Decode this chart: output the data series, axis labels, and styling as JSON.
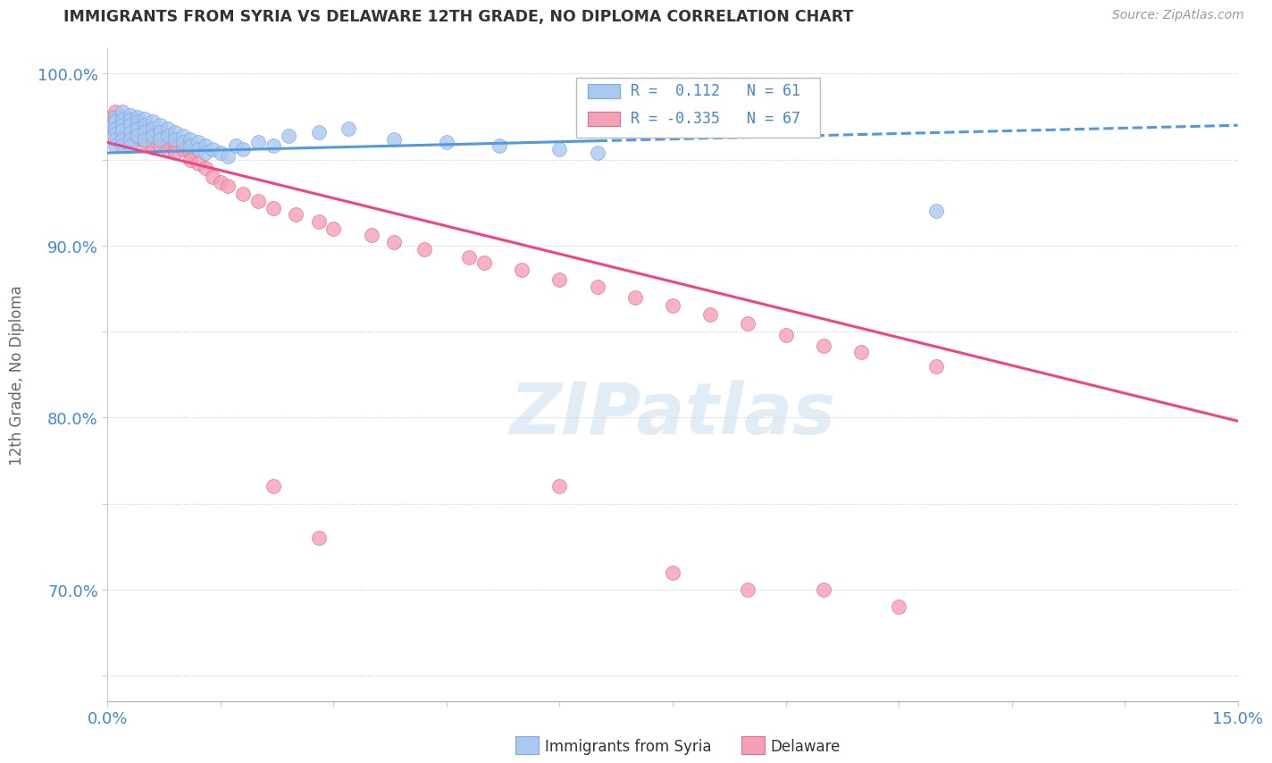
{
  "title": "IMMIGRANTS FROM SYRIA VS DELAWARE 12TH GRADE, NO DIPLOMA CORRELATION CHART",
  "source": "Source: ZipAtlas.com",
  "ylabel": "12th Grade, No Diploma",
  "xlim": [
    0.0,
    0.15
  ],
  "ylim": [
    0.635,
    1.015
  ],
  "xtick_positions": [
    0.0,
    0.015,
    0.03,
    0.045,
    0.06,
    0.075,
    0.09,
    0.105,
    0.12,
    0.135,
    0.15
  ],
  "xtick_labels": [
    "0.0%",
    "",
    "",
    "",
    "",
    "",
    "",
    "",
    "",
    "",
    "15.0%"
  ],
  "ytick_positions": [
    0.65,
    0.7,
    0.75,
    0.8,
    0.85,
    0.9,
    0.95,
    1.0
  ],
  "ytick_labels": [
    "",
    "70.0%",
    "",
    "80.0%",
    "",
    "90.0%",
    "",
    "100.0%"
  ],
  "color_syria": "#aac8f0",
  "color_syria_edge": "#7aaae0",
  "color_delaware": "#f5a0b5",
  "color_delaware_edge": "#e07090",
  "color_syria_line": "#5599dd",
  "color_delaware_line": "#ee4488",
  "color_axis_blue": "#4488cc",
  "color_title": "#333333",
  "color_source": "#999999",
  "watermark_text": "ZIPatlas",
  "watermark_color": "#ddeeff",
  "legend_r1": "R =  0.112",
  "legend_n1": "N = 61",
  "legend_r2": "R = -0.335",
  "legend_n2": "N = 67",
  "syria_line_x0": 0.0,
  "syria_line_x1": 0.15,
  "syria_line_y0": 0.954,
  "syria_line_y1": 0.97,
  "syria_line_solid_end": 0.065,
  "delaware_line_x0": 0.0,
  "delaware_line_x1": 0.15,
  "delaware_line_y0": 0.96,
  "delaware_line_y1": 0.798,
  "syria_x": [
    0.0005,
    0.001,
    0.001,
    0.001,
    0.001,
    0.001,
    0.001,
    0.002,
    0.002,
    0.002,
    0.002,
    0.002,
    0.002,
    0.003,
    0.003,
    0.003,
    0.003,
    0.003,
    0.003,
    0.004,
    0.004,
    0.004,
    0.004,
    0.005,
    0.005,
    0.005,
    0.005,
    0.006,
    0.006,
    0.006,
    0.007,
    0.007,
    0.007,
    0.008,
    0.008,
    0.009,
    0.009,
    0.01,
    0.01,
    0.011,
    0.011,
    0.012,
    0.012,
    0.013,
    0.013,
    0.014,
    0.015,
    0.016,
    0.017,
    0.018,
    0.02,
    0.022,
    0.024,
    0.028,
    0.032,
    0.038,
    0.045,
    0.052,
    0.06,
    0.065,
    0.11
  ],
  "syria_y": [
    0.97,
    0.975,
    0.972,
    0.968,
    0.965,
    0.962,
    0.958,
    0.978,
    0.973,
    0.97,
    0.967,
    0.962,
    0.958,
    0.976,
    0.973,
    0.97,
    0.966,
    0.962,
    0.958,
    0.975,
    0.972,
    0.968,
    0.964,
    0.974,
    0.97,
    0.966,
    0.962,
    0.972,
    0.968,
    0.964,
    0.97,
    0.966,
    0.962,
    0.968,
    0.964,
    0.966,
    0.962,
    0.964,
    0.96,
    0.962,
    0.958,
    0.96,
    0.956,
    0.958,
    0.954,
    0.956,
    0.954,
    0.952,
    0.958,
    0.956,
    0.96,
    0.958,
    0.964,
    0.966,
    0.968,
    0.962,
    0.96,
    0.958,
    0.956,
    0.954,
    0.92
  ],
  "delaware_x": [
    0.0005,
    0.001,
    0.001,
    0.001,
    0.001,
    0.001,
    0.002,
    0.002,
    0.002,
    0.002,
    0.002,
    0.003,
    0.003,
    0.003,
    0.003,
    0.004,
    0.004,
    0.004,
    0.005,
    0.005,
    0.005,
    0.006,
    0.006,
    0.006,
    0.007,
    0.007,
    0.008,
    0.008,
    0.009,
    0.009,
    0.01,
    0.011,
    0.011,
    0.012,
    0.013,
    0.014,
    0.015,
    0.016,
    0.018,
    0.02,
    0.022,
    0.025,
    0.028,
    0.03,
    0.035,
    0.038,
    0.042,
    0.048,
    0.05,
    0.055,
    0.06,
    0.065,
    0.07,
    0.075,
    0.08,
    0.085,
    0.09,
    0.095,
    0.1,
    0.11,
    0.022,
    0.028,
    0.06,
    0.075,
    0.085,
    0.095,
    0.105
  ],
  "delaware_y": [
    0.975,
    0.978,
    0.974,
    0.97,
    0.966,
    0.962,
    0.975,
    0.972,
    0.968,
    0.965,
    0.96,
    0.973,
    0.97,
    0.966,
    0.962,
    0.97,
    0.966,
    0.962,
    0.968,
    0.964,
    0.96,
    0.965,
    0.961,
    0.957,
    0.962,
    0.958,
    0.96,
    0.956,
    0.958,
    0.954,
    0.956,
    0.954,
    0.95,
    0.948,
    0.945,
    0.94,
    0.937,
    0.935,
    0.93,
    0.926,
    0.922,
    0.918,
    0.914,
    0.91,
    0.906,
    0.902,
    0.898,
    0.893,
    0.89,
    0.886,
    0.88,
    0.876,
    0.87,
    0.865,
    0.86,
    0.855,
    0.848,
    0.842,
    0.838,
    0.83,
    0.76,
    0.73,
    0.76,
    0.71,
    0.7,
    0.7,
    0.69
  ]
}
